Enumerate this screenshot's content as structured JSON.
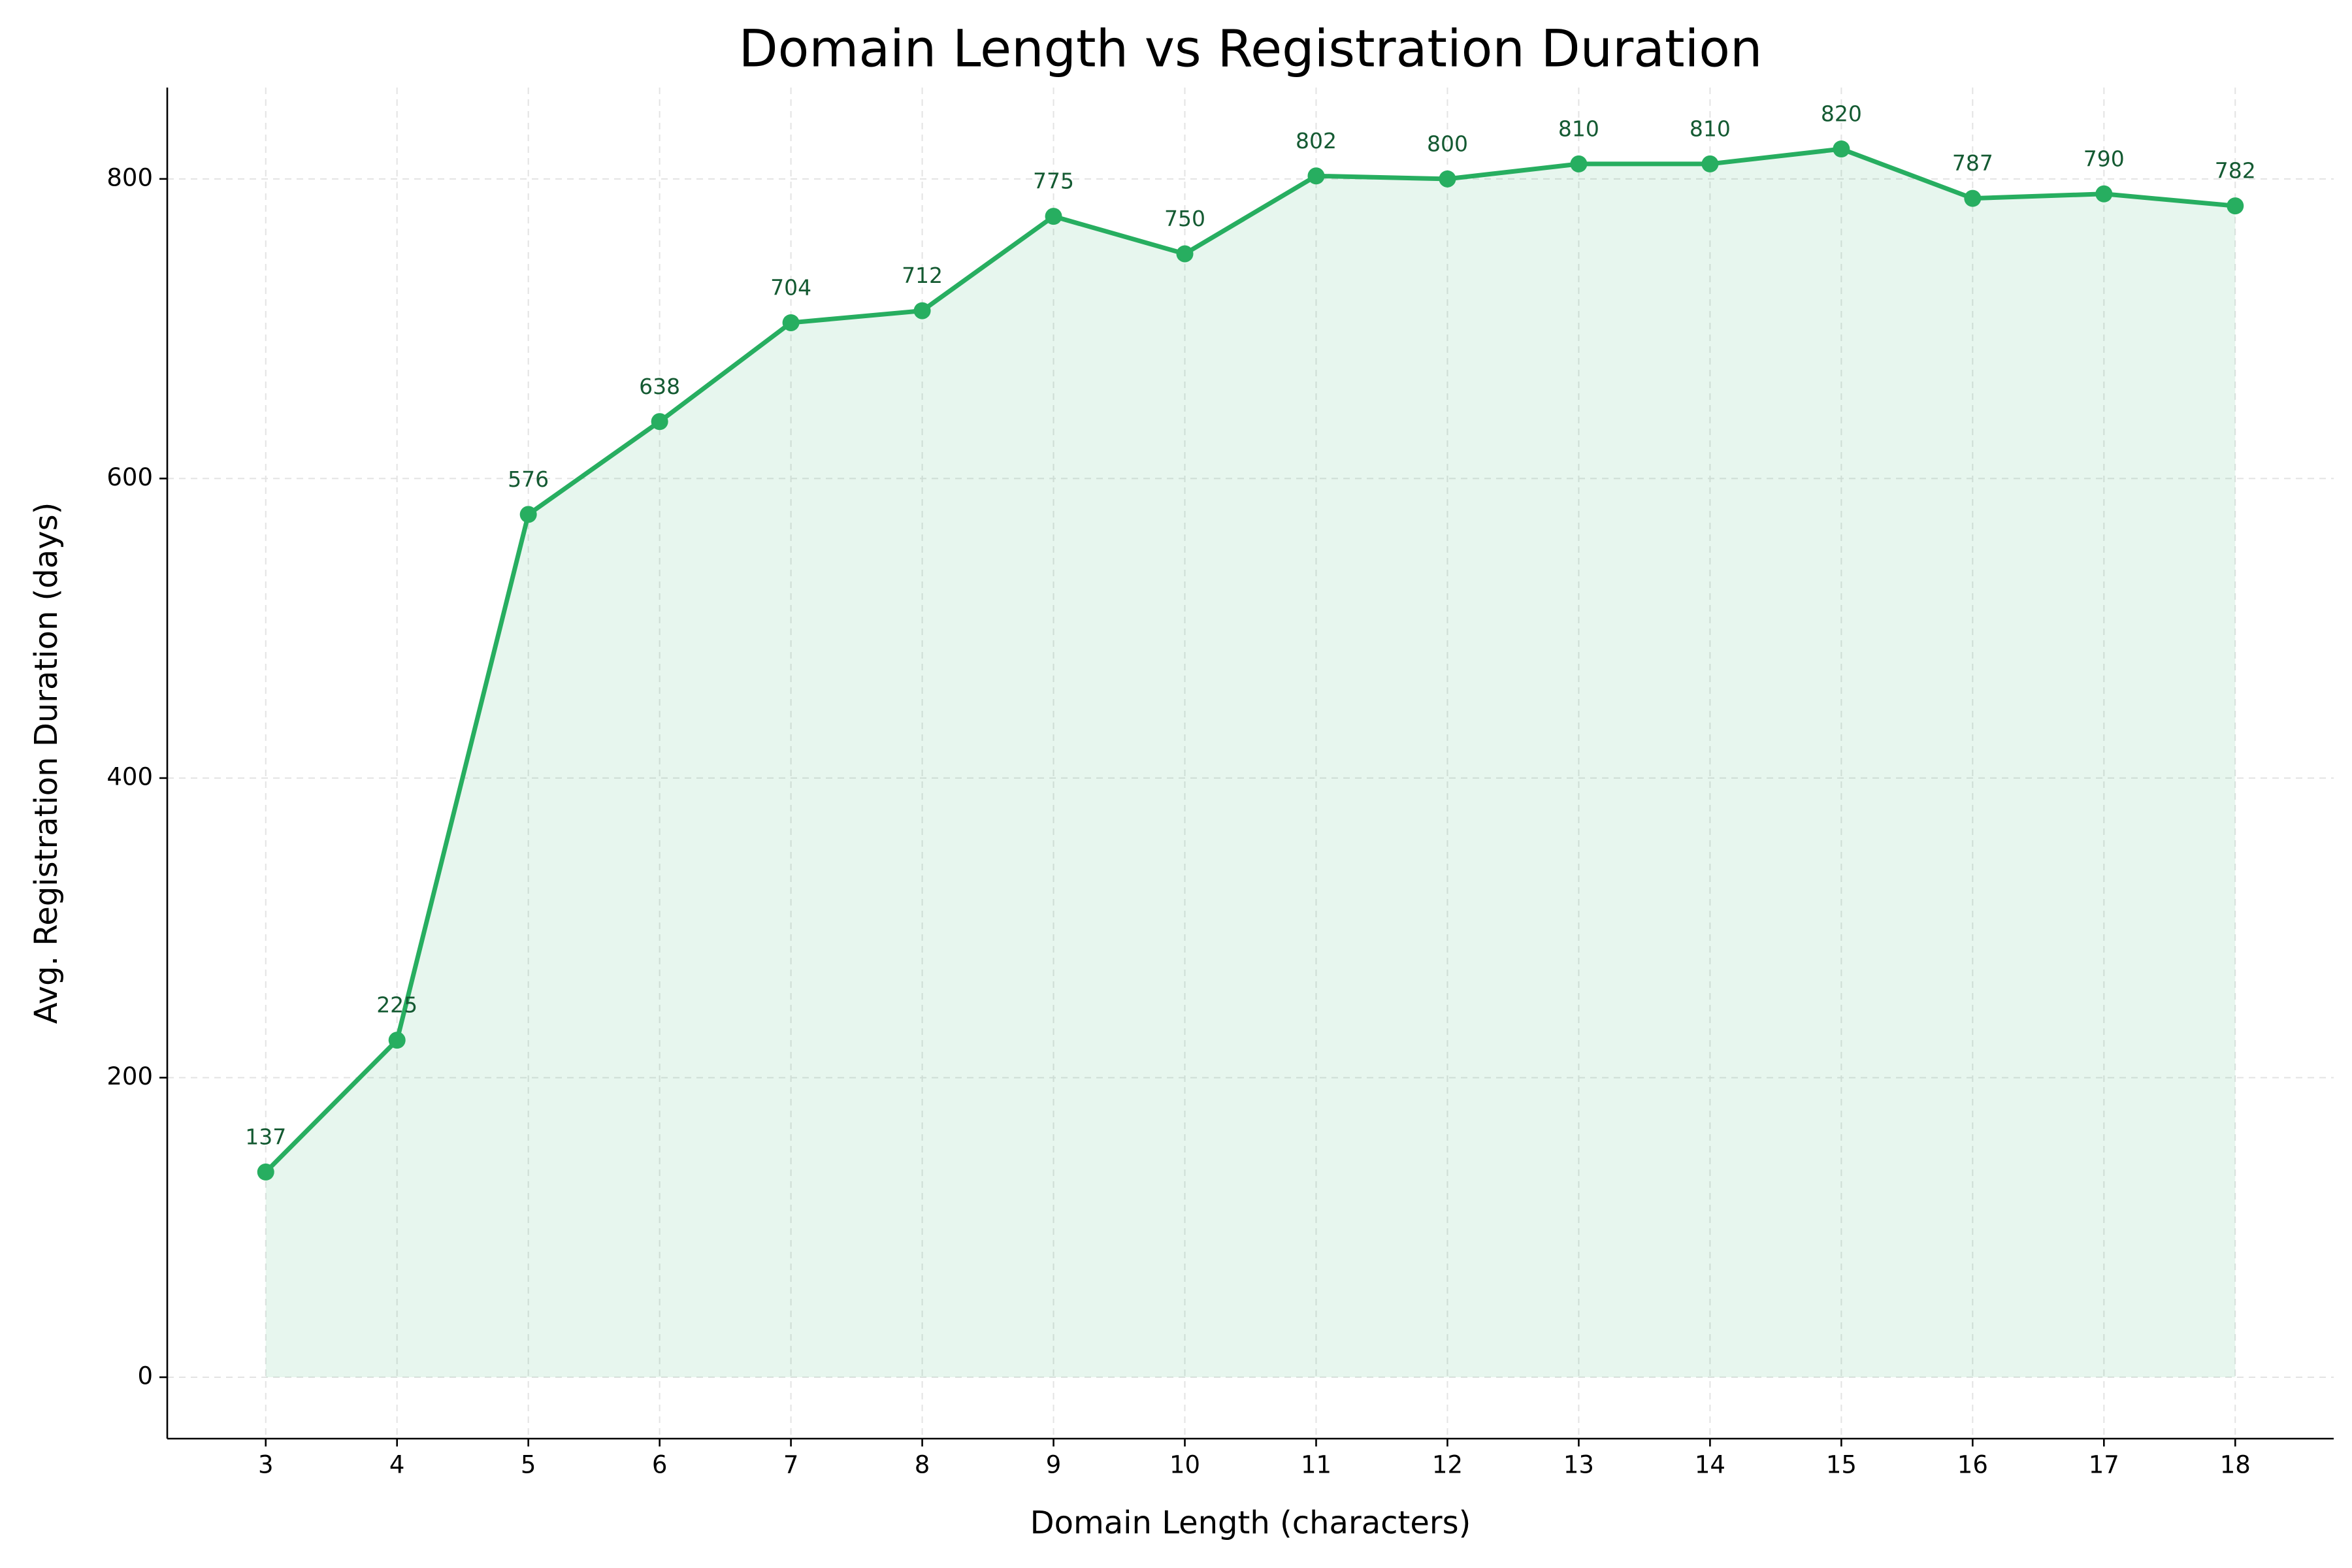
{
  "chart_data": {
    "type": "line",
    "title": "Domain Length vs Registration Duration",
    "xlabel": "Domain Length (characters)",
    "ylabel": "Avg. Registration Duration (days)",
    "x": [
      3,
      4,
      5,
      6,
      7,
      8,
      9,
      10,
      11,
      12,
      13,
      14,
      15,
      16,
      17,
      18
    ],
    "values": [
      137,
      225,
      576,
      638,
      704,
      712,
      775,
      750,
      802,
      800,
      810,
      810,
      820,
      787,
      790,
      782
    ],
    "color": "#27ae60",
    "label_color": "#145a32",
    "fill": true,
    "markers": true,
    "xlim": [
      2.25,
      18.75
    ],
    "ylim": [
      -41,
      861
    ],
    "xticks": [
      3,
      4,
      5,
      6,
      7,
      8,
      9,
      10,
      11,
      12,
      13,
      14,
      15,
      16,
      17,
      18
    ],
    "yticks": [
      0,
      200,
      400,
      600,
      800
    ],
    "grid": true
  }
}
